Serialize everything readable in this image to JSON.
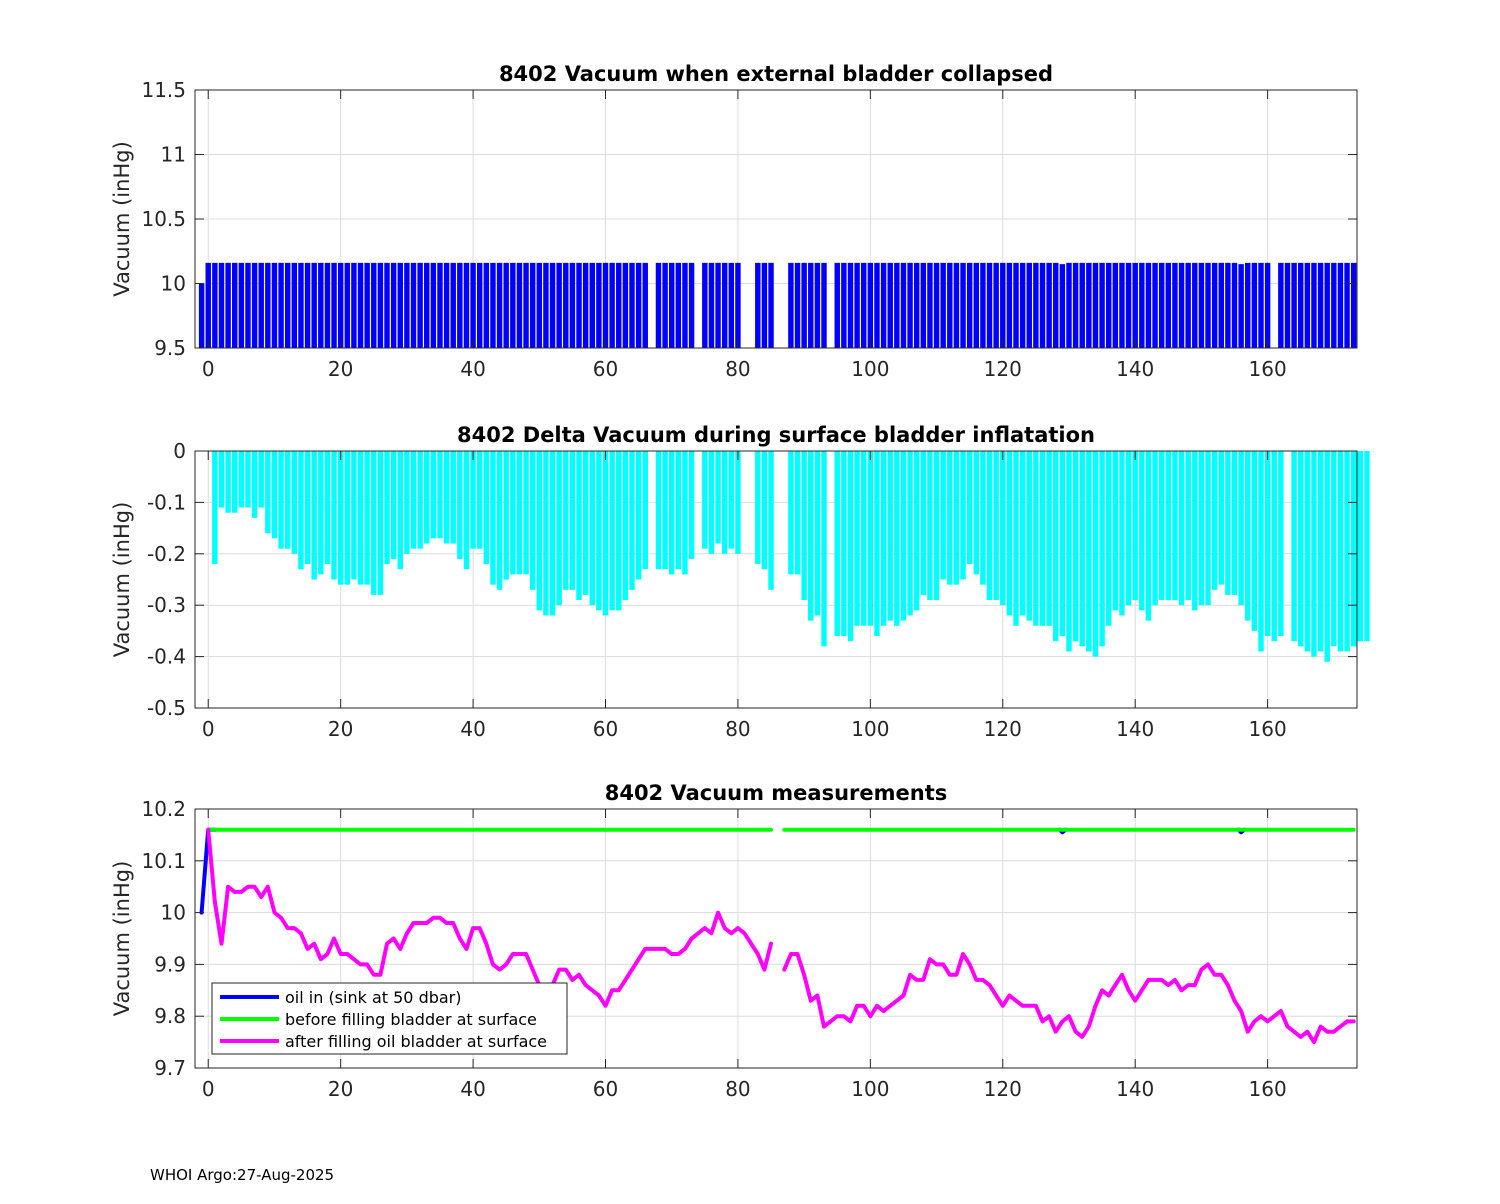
{
  "footer_text": "WHOI Argo:27-Aug-2025",
  "chart_data": [
    {
      "type": "bar",
      "title": "8402 Vacuum when external bladder collapsed",
      "ylabel": "Vacuum (inHg)",
      "xlabel": "",
      "xlim": [
        -2,
        173.5
      ],
      "ylim": [
        9.5,
        11.5
      ],
      "xticks": [
        0,
        20,
        40,
        60,
        80,
        100,
        120,
        140,
        160
      ],
      "yticks": [
        9.5,
        10,
        10.5,
        11,
        11.5
      ],
      "xtick_labels": [
        "0",
        "20",
        "40",
        "60",
        "80",
        "100",
        "120",
        "140",
        "160"
      ],
      "ytick_labels": [
        "9.5",
        "10",
        "10.5",
        "11",
        "11.5"
      ],
      "grid": true,
      "bar_color": "#0000ff",
      "baseline_value": 9.5,
      "missing_x": [
        67,
        74,
        81,
        82,
        86,
        87,
        94,
        161
      ],
      "special_values": {
        "-1": 10.0,
        "129": 10.15,
        "156": 10.15
      },
      "default_value": 10.16
    },
    {
      "type": "bar",
      "title": "8402 Delta Vacuum during surface bladder inflatation",
      "ylabel": "Vacuum (inHg)",
      "xlabel": "",
      "xlim": [
        -2,
        173.5
      ],
      "ylim": [
        -0.5,
        0
      ],
      "xticks": [
        0,
        20,
        40,
        60,
        80,
        100,
        120,
        140,
        160
      ],
      "yticks": [
        -0.5,
        -0.4,
        -0.3,
        -0.2,
        -0.1,
        0
      ],
      "xtick_labels": [
        "0",
        "20",
        "40",
        "60",
        "80",
        "100",
        "120",
        "140",
        "160"
      ],
      "ytick_labels": [
        "-0.5",
        "-0.4",
        "-0.3",
        "-0.2",
        "-0.1",
        "0"
      ],
      "grid": true,
      "bar_color": "#00ffff",
      "baseline_value": 0,
      "missing_x": [
        67,
        74,
        81,
        82,
        86,
        87,
        94,
        161
      ],
      "x_start": 1,
      "x_end": 173,
      "values": [
        -0.22,
        -0.11,
        -0.12,
        -0.12,
        -0.11,
        -0.11,
        -0.13,
        -0.11,
        -0.16,
        -0.17,
        -0.19,
        -0.19,
        -0.2,
        -0.23,
        -0.22,
        -0.25,
        -0.24,
        -0.22,
        -0.25,
        -0.26,
        -0.26,
        -0.25,
        -0.26,
        -0.26,
        -0.28,
        -0.28,
        -0.22,
        -0.21,
        -0.23,
        -0.2,
        -0.19,
        -0.19,
        -0.18,
        -0.17,
        -0.17,
        -0.18,
        -0.18,
        -0.21,
        -0.23,
        -0.19,
        -0.19,
        -0.22,
        -0.26,
        -0.27,
        -0.25,
        -0.24,
        -0.24,
        -0.24,
        -0.27,
        -0.31,
        -0.32,
        -0.32,
        -0.3,
        -0.27,
        -0.27,
        -0.29,
        -0.28,
        -0.3,
        -0.31,
        -0.32,
        -0.31,
        -0.31,
        -0.29,
        -0.27,
        -0.25,
        -0.23,
        null,
        -0.23,
        -0.23,
        -0.24,
        -0.23,
        -0.24,
        -0.21,
        null,
        -0.19,
        -0.2,
        -0.18,
        -0.2,
        -0.19,
        -0.2,
        null,
        null,
        -0.22,
        -0.23,
        -0.27,
        null,
        null,
        -0.24,
        -0.24,
        -0.29,
        -0.33,
        -0.32,
        -0.38,
        null,
        -0.36,
        -0.36,
        -0.37,
        -0.34,
        -0.34,
        -0.34,
        -0.36,
        -0.34,
        -0.33,
        -0.34,
        -0.33,
        -0.32,
        -0.31,
        -0.28,
        -0.29,
        -0.29,
        -0.25,
        -0.26,
        -0.26,
        -0.25,
        -0.22,
        -0.24,
        -0.26,
        -0.29,
        -0.29,
        -0.3,
        -0.32,
        -0.34,
        -0.32,
        -0.33,
        -0.34,
        -0.34,
        -0.34,
        -0.37,
        -0.36,
        -0.39,
        -0.37,
        -0.38,
        -0.39,
        -0.4,
        -0.38,
        -0.34,
        -0.31,
        -0.32,
        -0.3,
        -0.29,
        -0.31,
        -0.33,
        -0.3,
        -0.29,
        -0.29,
        -0.29,
        -0.3,
        -0.29,
        -0.31,
        -0.3,
        -0.3,
        -0.27,
        -0.26,
        -0.28,
        -0.28,
        -0.3,
        -0.33,
        -0.35,
        -0.39,
        -0.36,
        -0.37,
        -0.36,
        null,
        -0.37,
        -0.38,
        -0.39,
        -0.4,
        -0.39,
        -0.41,
        -0.38,
        -0.39,
        -0.39,
        -0.38,
        -0.37,
        -0.37
      ]
    },
    {
      "type": "line",
      "title": "8402 Vacuum measurements",
      "ylabel": "Vacuum (inHg)",
      "xlabel": "",
      "xlim": [
        -2,
        173.5
      ],
      "ylim": [
        9.7,
        10.2
      ],
      "xticks": [
        0,
        20,
        40,
        60,
        80,
        100,
        120,
        140,
        160
      ],
      "yticks": [
        9.7,
        9.8,
        9.9,
        10,
        10.1,
        10.2
      ],
      "xtick_labels": [
        "0",
        "20",
        "40",
        "60",
        "80",
        "100",
        "120",
        "140",
        "160"
      ],
      "ytick_labels": [
        "9.7",
        "9.8",
        "9.9",
        "10",
        "10.1",
        "10.2"
      ],
      "grid": true,
      "legend_position": "bottom-left",
      "series": [
        {
          "name": "oil in (sink at 50 dbar)",
          "color": "#0000ff",
          "segments": [
            [
              [
                -1,
                10.0
              ],
              [
                0,
                10.16
              ],
              [
                1,
                10.16
              ]
            ],
            [
              [
                128.6,
                10.16
              ],
              [
                129,
                10.155
              ],
              [
                129.5,
                10.16
              ]
            ],
            [
              [
                155.6,
                10.16
              ],
              [
                156,
                10.155
              ],
              [
                156.5,
                10.16
              ]
            ]
          ]
        },
        {
          "name": "before filling bladder at surface",
          "color": "#00ff00",
          "segments": [
            [
              [
                0,
                10.16
              ],
              [
                85,
                10.16
              ]
            ],
            [
              [
                87,
                10.16
              ],
              [
                173,
                10.16
              ]
            ]
          ]
        },
        {
          "name": "after filling oil bladder at surface",
          "color": "#ff00ff",
          "x_start": 0,
          "values": [
            10.16,
            10.02,
            9.94,
            10.05,
            10.04,
            10.04,
            10.05,
            10.05,
            10.03,
            10.05,
            10.0,
            9.99,
            9.97,
            9.97,
            9.96,
            9.93,
            9.94,
            9.91,
            9.92,
            9.95,
            9.92,
            9.92,
            9.91,
            9.9,
            9.9,
            9.88,
            9.88,
            9.94,
            9.95,
            9.93,
            9.96,
            9.98,
            9.98,
            9.98,
            9.99,
            9.99,
            9.98,
            9.98,
            9.95,
            9.93,
            9.97,
            9.97,
            9.94,
            9.9,
            9.89,
            9.9,
            9.92,
            9.92,
            9.92,
            9.89,
            9.86,
            9.84,
            9.86,
            9.89,
            9.89,
            9.87,
            9.88,
            9.86,
            9.85,
            9.84,
            9.82,
            9.85,
            9.85,
            9.87,
            9.89,
            9.91,
            9.93,
            9.93,
            9.93,
            9.93,
            9.92,
            9.92,
            9.93,
            9.95,
            9.96,
            9.97,
            9.96,
            10.0,
            9.97,
            9.96,
            9.97,
            9.96,
            9.94,
            9.92,
            9.89,
            9.94,
            null,
            9.89,
            9.92,
            9.92,
            9.88,
            9.83,
            9.84,
            9.78,
            9.79,
            9.8,
            9.8,
            9.79,
            9.82,
            9.82,
            9.8,
            9.82,
            9.81,
            9.82,
            9.83,
            9.84,
            9.88,
            9.87,
            9.87,
            9.91,
            9.9,
            9.9,
            9.88,
            9.88,
            9.92,
            9.9,
            9.87,
            9.87,
            9.86,
            9.84,
            9.82,
            9.84,
            9.83,
            9.82,
            9.82,
            9.82,
            9.79,
            9.8,
            9.77,
            9.79,
            9.8,
            9.77,
            9.76,
            9.78,
            9.82,
            9.85,
            9.84,
            9.86,
            9.88,
            9.85,
            9.83,
            9.85,
            9.87,
            9.87,
            9.87,
            9.86,
            9.87,
            9.85,
            9.86,
            9.86,
            9.89,
            9.9,
            9.88,
            9.88,
            9.86,
            9.83,
            9.81,
            9.77,
            9.79,
            9.8,
            9.79,
            9.8,
            9.81,
            9.78,
            9.77,
            9.76,
            9.77,
            9.75,
            9.78,
            9.77,
            9.77,
            9.78,
            9.79,
            9.79
          ]
        }
      ]
    }
  ]
}
